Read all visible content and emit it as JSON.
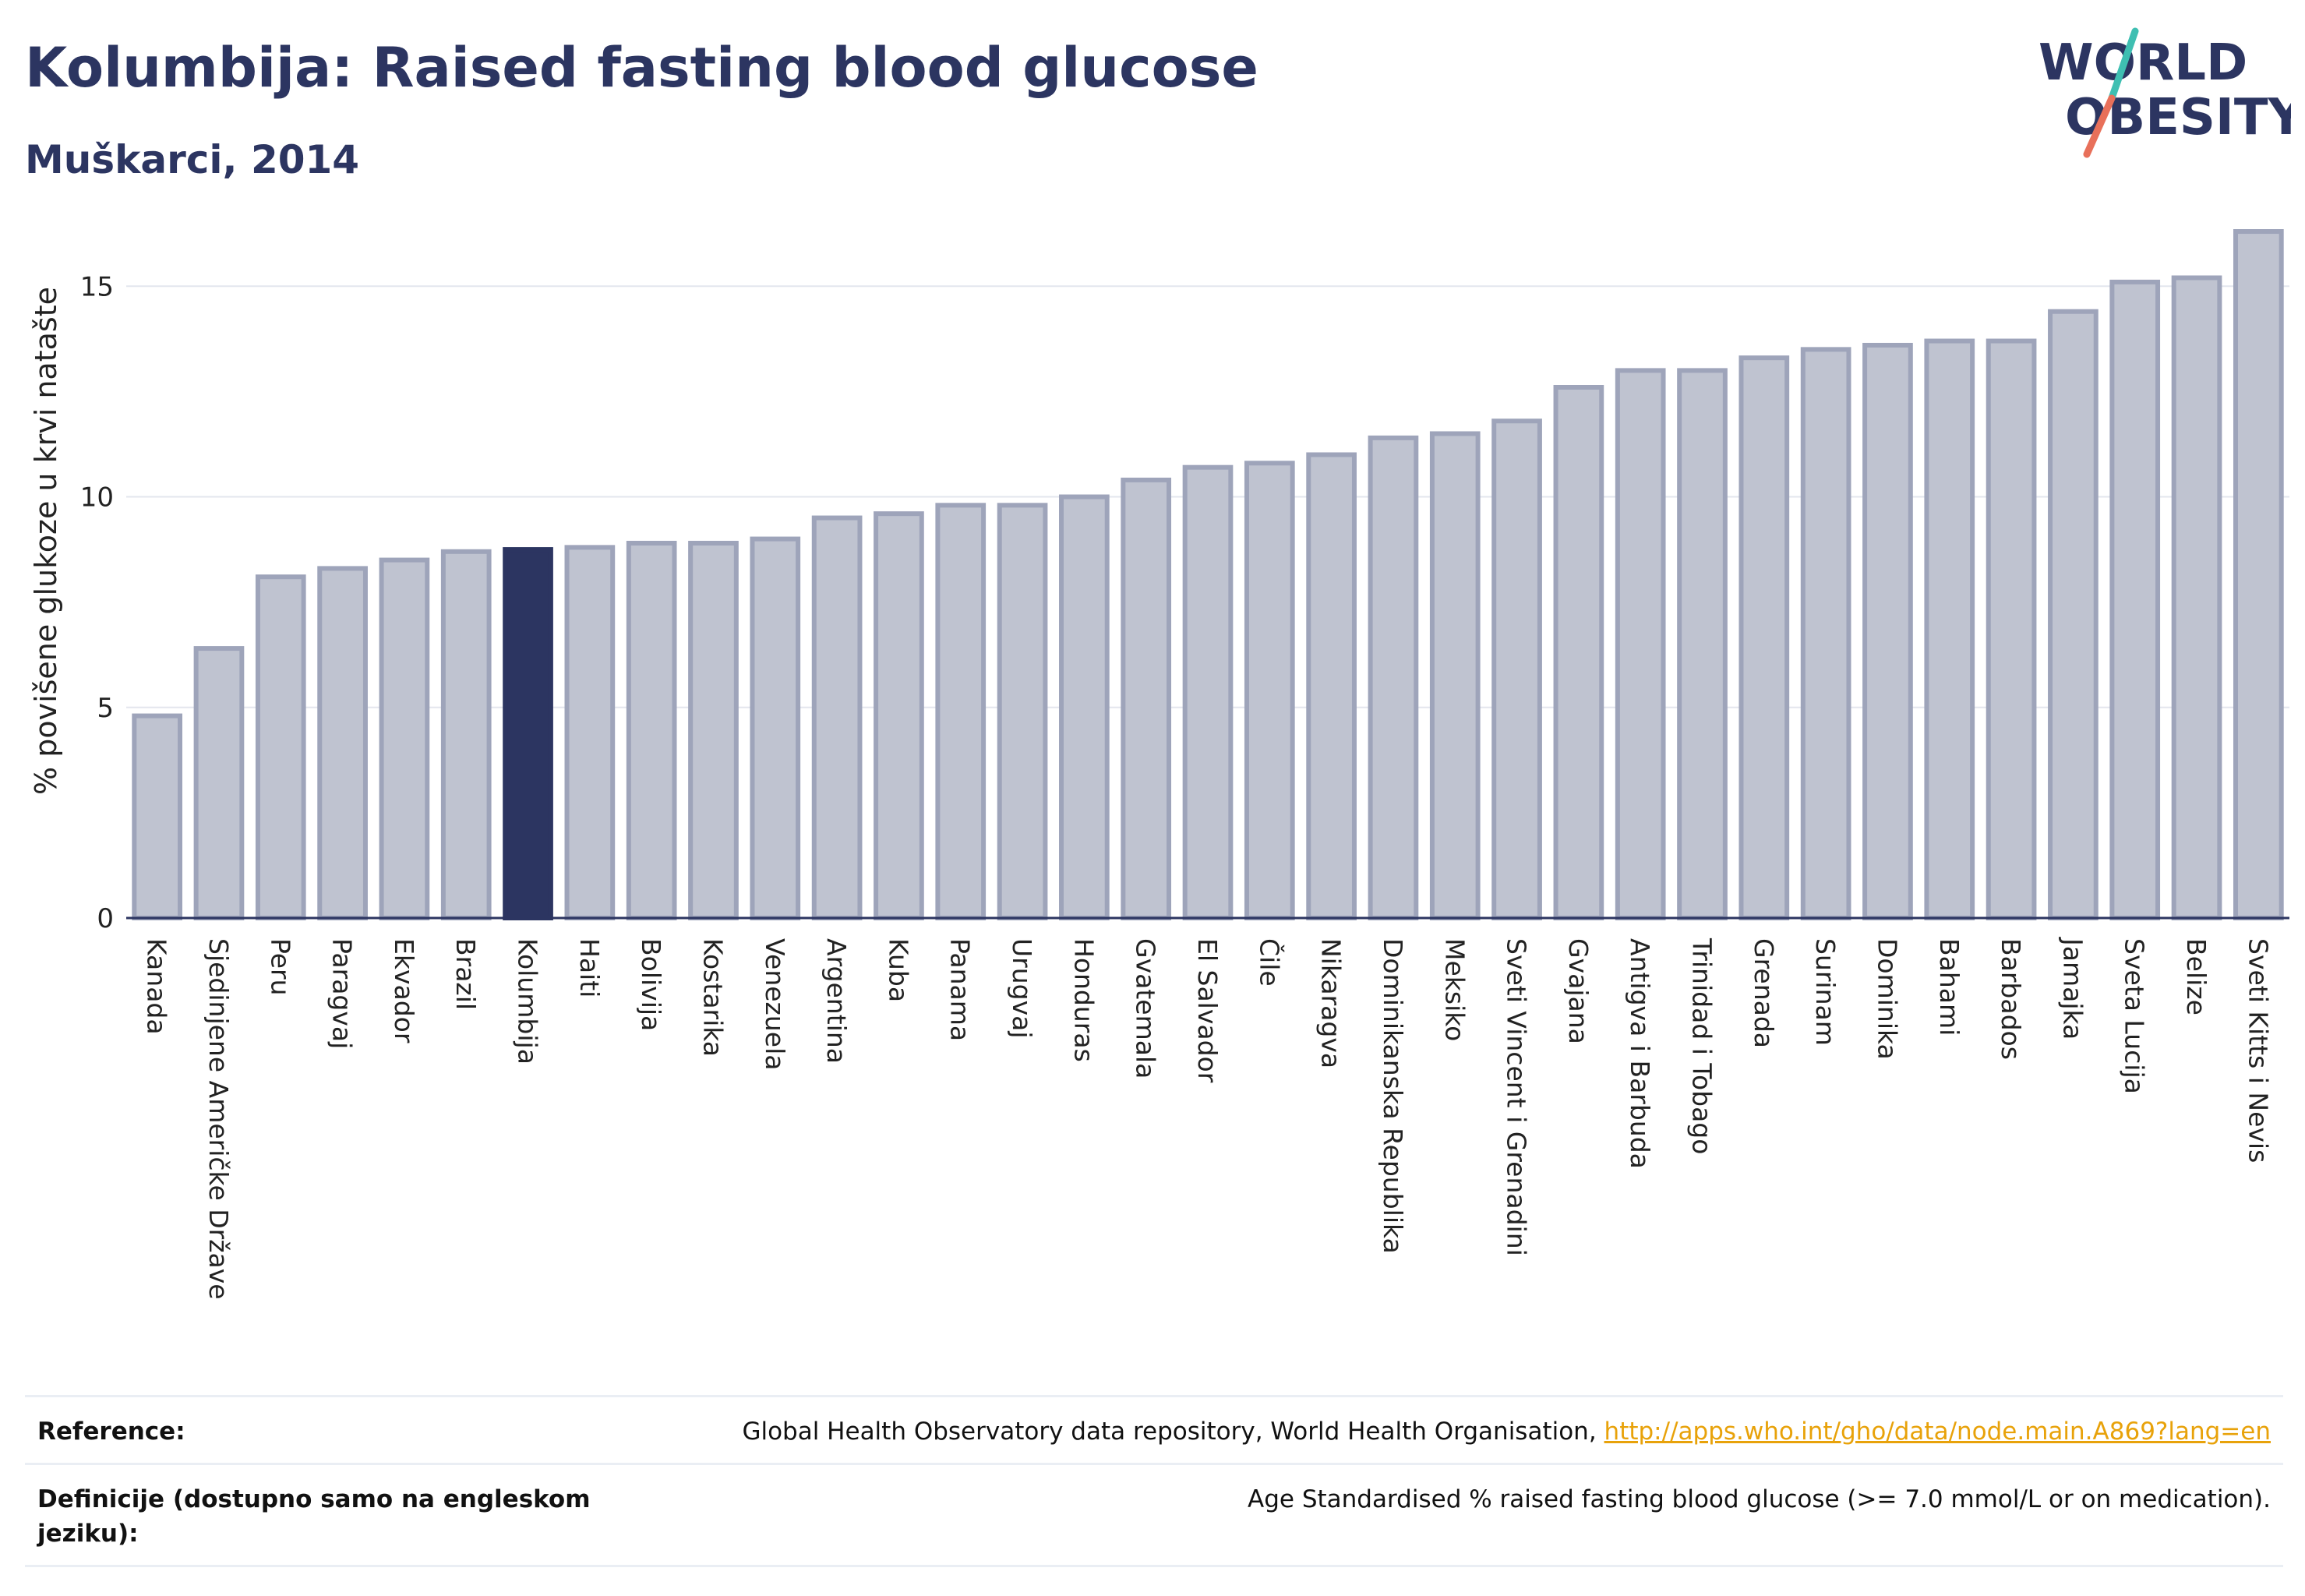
{
  "header": {
    "title": "Kolumbija: Raised fasting blood glucose",
    "subtitle": "Muškarci, 2014"
  },
  "logo": {
    "line1": "WORLD",
    "line2": "OBESITY"
  },
  "colors": {
    "highlight": "#2c3561",
    "bar_fill": "#bfc3d0",
    "bar_stroke": "#9ea4ba",
    "slash_top": "#3fbfb2",
    "slash_bottom": "#e8705a",
    "link": "#e8a20a"
  },
  "chart_data": {
    "type": "bar",
    "ylabel": "% povišene glukoze u krvi natašte",
    "ylim": [
      0,
      16.8
    ],
    "yticks": [
      0,
      5,
      10,
      15
    ],
    "highlight": "Kolumbija",
    "categories": [
      "Kanada",
      "Sjedinjene Američke Države",
      "Peru",
      "Paragvaj",
      "Ekvador",
      "Brazil",
      "Kolumbija",
      "Haiti",
      "Bolivija",
      "Kostarika",
      "Venezuela",
      "Argentina",
      "Kuba",
      "Panama",
      "Urugvaj",
      "Honduras",
      "Gvatemala",
      "El Salvador",
      "Čile",
      "Nikaragva",
      "Dominikanska Republika",
      "Meksiko",
      "Sveti Vincent i Grenadini",
      "Gvajana",
      "Antigva i Barbuda",
      "Trinidad i Tobago",
      "Grenada",
      "Surinam",
      "Dominika",
      "Bahami",
      "Barbados",
      "Jamajka",
      "Sveta Lucija",
      "Belize",
      "Sveti Kitts i Nevis"
    ],
    "values": [
      4.8,
      6.4,
      8.1,
      8.3,
      8.5,
      8.7,
      8.75,
      8.8,
      8.9,
      8.9,
      9.0,
      9.5,
      9.6,
      9.8,
      9.8,
      10.0,
      10.4,
      10.7,
      10.8,
      11.0,
      11.4,
      11.5,
      11.8,
      12.6,
      13.0,
      13.0,
      13.3,
      13.5,
      13.6,
      13.7,
      13.7,
      14.4,
      15.1,
      15.2,
      16.3
    ],
    "grid": true
  },
  "footer": {
    "reference_label": "Reference:",
    "reference_text": "Global Health Observatory data repository, World Health Organisation,",
    "reference_link": "http://apps.who.int/gho/data/node.main.A869?lang=en",
    "definition_label": "Definicije (dostupno samo na engleskom jeziku):",
    "definition_text": "Age Standardised % raised fasting blood glucose (>= 7.0 mmol/L or on medication)."
  }
}
